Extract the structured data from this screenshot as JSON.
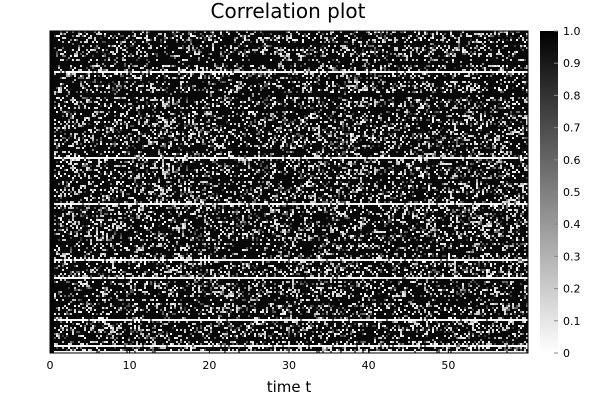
{
  "chart_data": {
    "type": "heatmap",
    "title": "Correlation plot",
    "xlabel": "time t",
    "ylabel": "",
    "xlim": [
      0,
      60
    ],
    "x_ticks": [
      {
        "value": 0,
        "label": "0"
      },
      {
        "value": 10,
        "label": "10"
      },
      {
        "value": 20,
        "label": "20"
      },
      {
        "value": 30,
        "label": "30"
      },
      {
        "value": 40,
        "label": "40"
      },
      {
        "value": 50,
        "label": "50"
      }
    ],
    "y_ticks_labeled": false,
    "colorbar": {
      "range": [
        0,
        1
      ],
      "colors": [
        "#ffffff",
        "#000000"
      ],
      "ticks": [
        {
          "value": 0,
          "label": "0"
        },
        {
          "value": 0.1,
          "label": "0.1"
        },
        {
          "value": 0.2,
          "label": "0.2"
        },
        {
          "value": 0.3,
          "label": "0.3"
        },
        {
          "value": 0.4,
          "label": "0.4"
        },
        {
          "value": 0.5,
          "label": "0.5"
        },
        {
          "value": 0.6,
          "label": "0.6"
        },
        {
          "value": 0.7,
          "label": "0.7"
        },
        {
          "value": 0.8,
          "label": "0.8"
        },
        {
          "value": 0.9,
          "label": "0.9"
        },
        {
          "value": 1.0,
          "label": "1.0"
        }
      ]
    },
    "value_description": "mostly near 1 (black) with scattered low values (white); several rows entirely near 0"
  }
}
